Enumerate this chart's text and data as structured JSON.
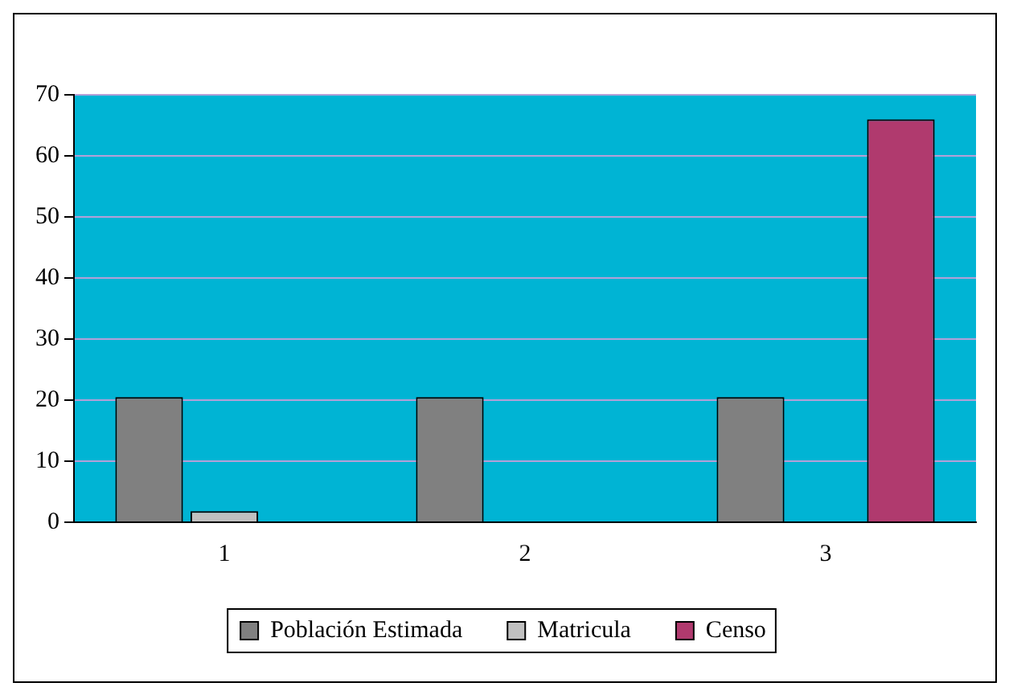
{
  "chart_data": {
    "type": "bar",
    "categories": [
      "1",
      "2",
      "3"
    ],
    "series": [
      {
        "name": "Población Estimada",
        "color": "#808080",
        "values": [
          20.5,
          20.5,
          20.5
        ]
      },
      {
        "name": "Matricula",
        "color": "#c0c0c0",
        "values": [
          1.8,
          0,
          0
        ]
      },
      {
        "name": "Censo",
        "color": "#b03a6e",
        "values": [
          0,
          0,
          66
        ]
      }
    ],
    "ylim": [
      0,
      70
    ],
    "yticks": [
      0,
      10,
      20,
      30,
      40,
      50,
      60,
      70
    ],
    "grid": "y",
    "legend": "bottom"
  }
}
